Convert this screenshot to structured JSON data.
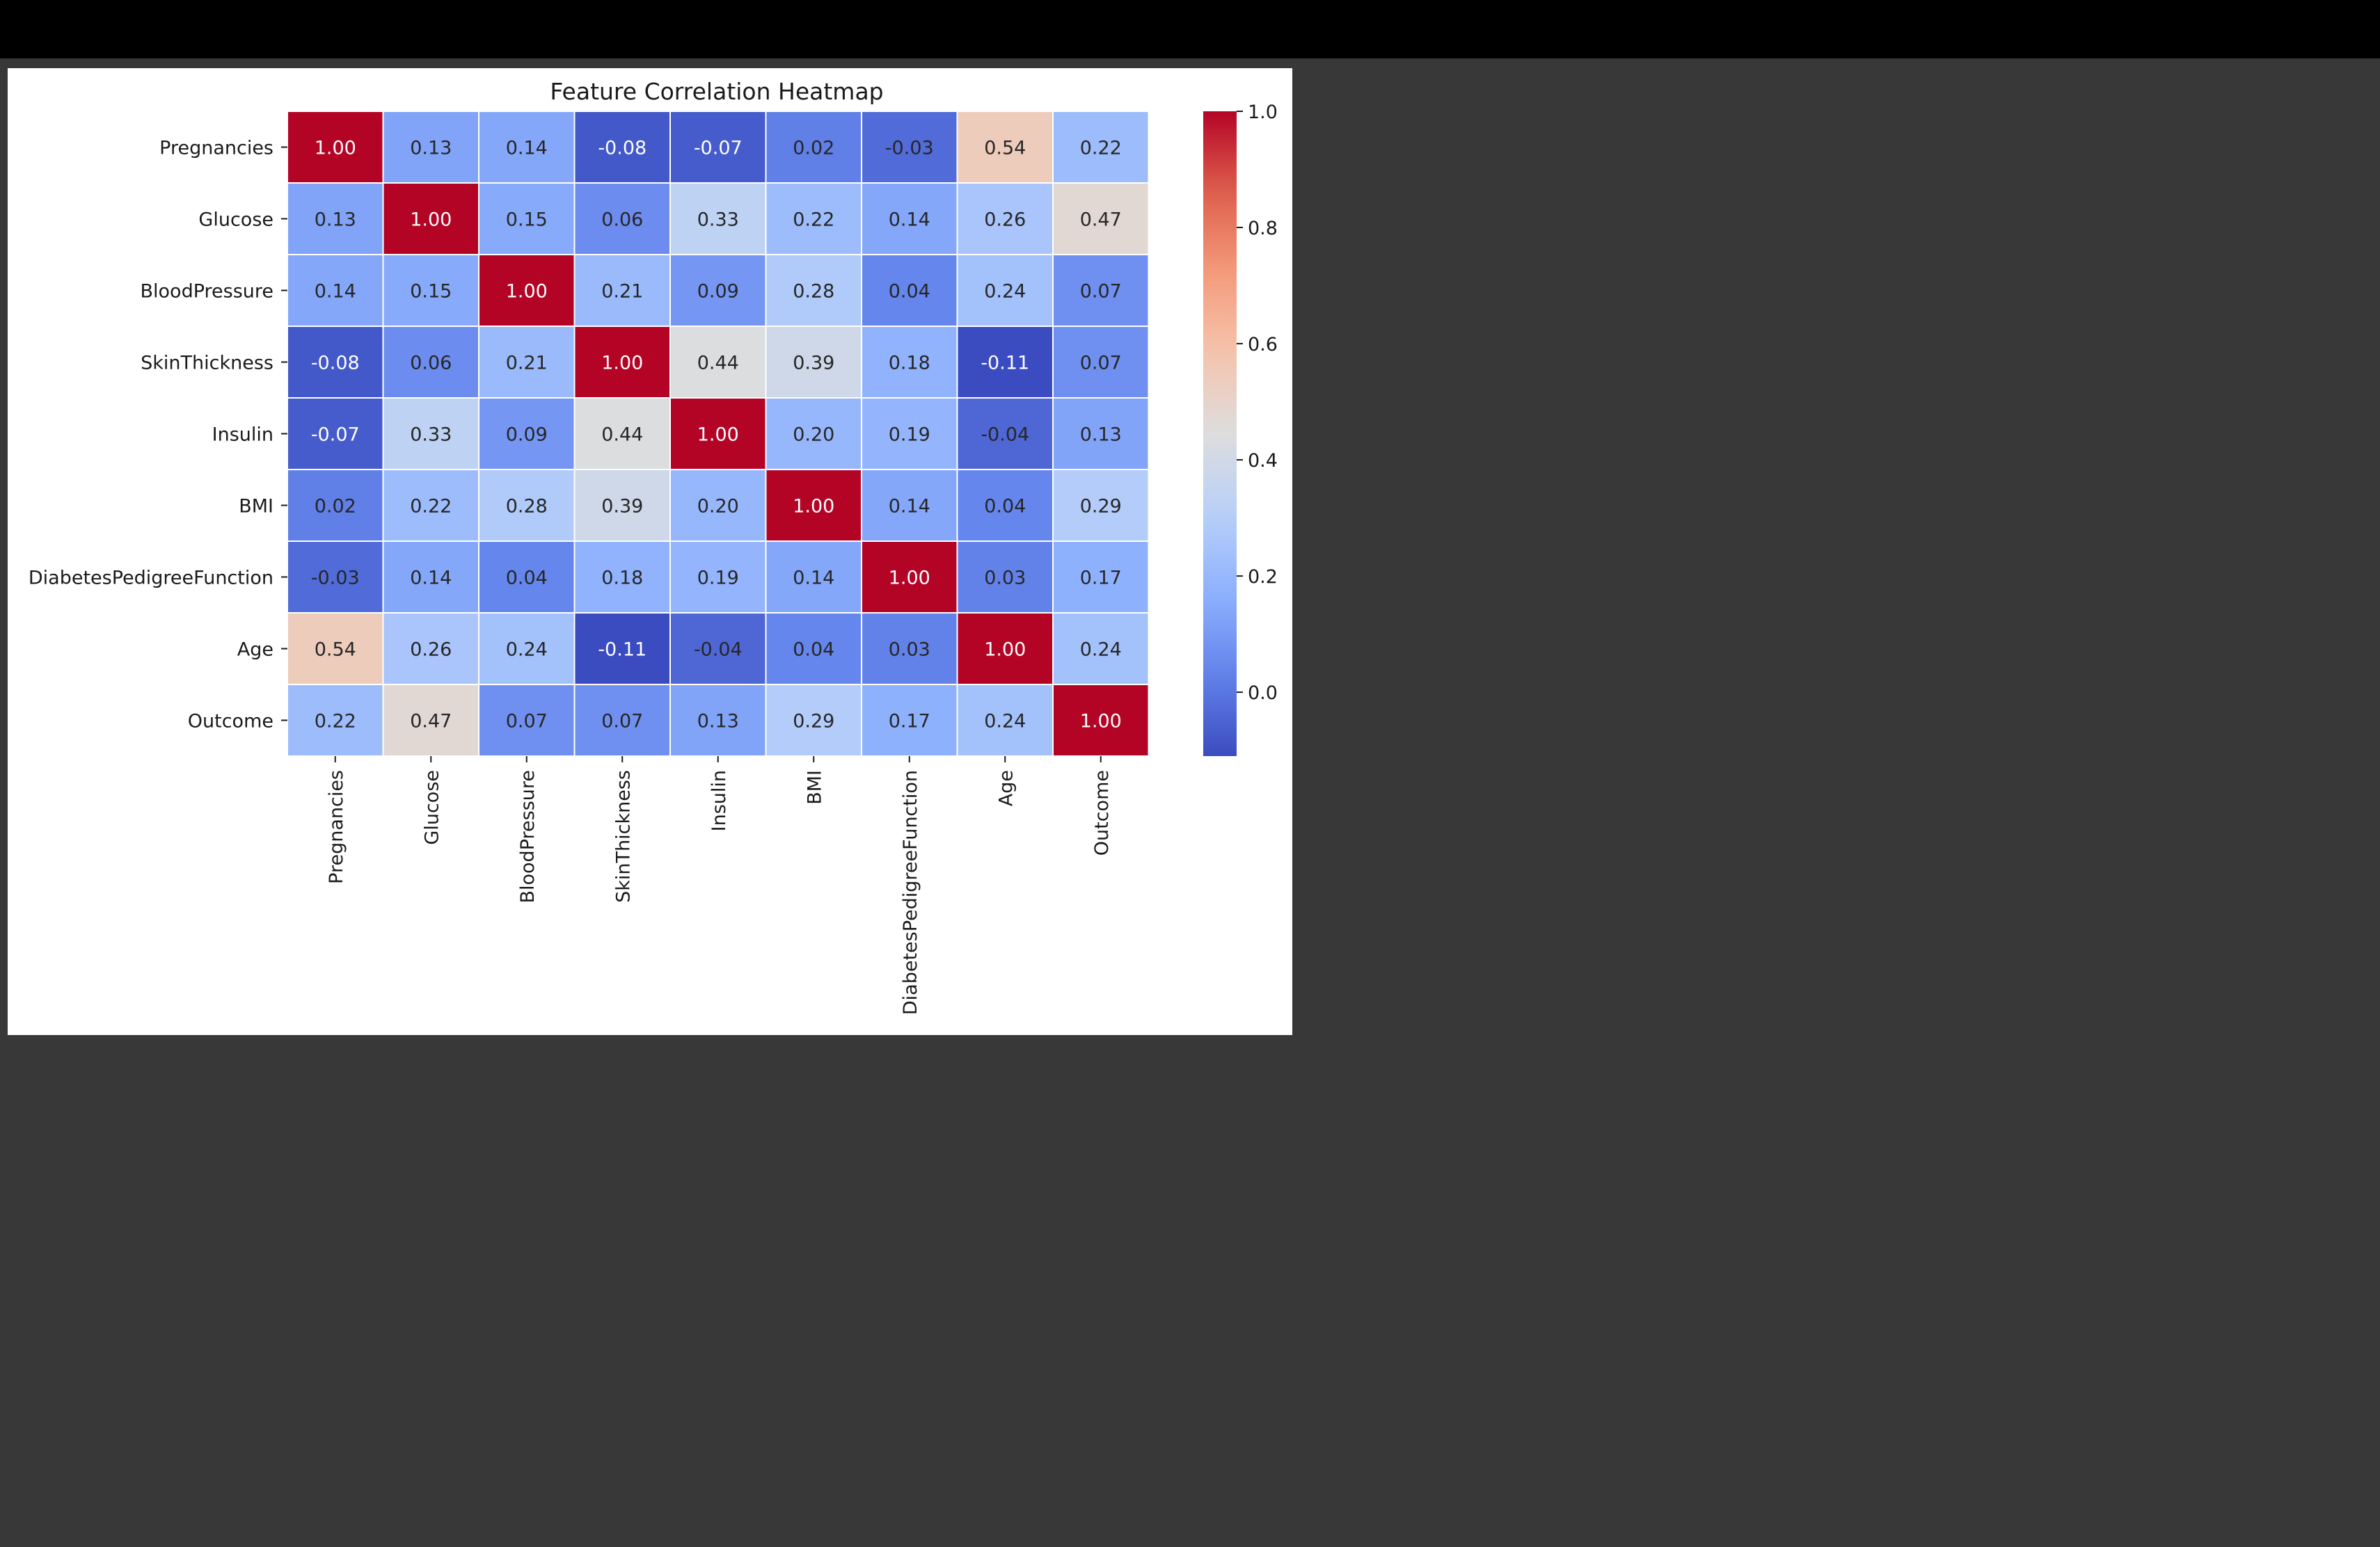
{
  "chart_data": {
    "type": "heatmap",
    "title": "Feature Correlation Heatmap",
    "labels": [
      "Pregnancies",
      "Glucose",
      "BloodPressure",
      "SkinThickness",
      "Insulin",
      "BMI",
      "DiabetesPedigreeFunction",
      "Age",
      "Outcome"
    ],
    "matrix": [
      [
        1.0,
        0.13,
        0.14,
        -0.08,
        -0.07,
        0.02,
        -0.03,
        0.54,
        0.22
      ],
      [
        0.13,
        1.0,
        0.15,
        0.06,
        0.33,
        0.22,
        0.14,
        0.26,
        0.47
      ],
      [
        0.14,
        0.15,
        1.0,
        0.21,
        0.09,
        0.28,
        0.04,
        0.24,
        0.07
      ],
      [
        -0.08,
        0.06,
        0.21,
        1.0,
        0.44,
        0.39,
        0.18,
        -0.11,
        0.07
      ],
      [
        -0.07,
        0.33,
        0.09,
        0.44,
        1.0,
        0.2,
        0.19,
        -0.04,
        0.13
      ],
      [
        0.02,
        0.22,
        0.28,
        0.39,
        0.2,
        1.0,
        0.14,
        0.04,
        0.29
      ],
      [
        -0.03,
        0.14,
        0.04,
        0.18,
        0.19,
        0.14,
        1.0,
        0.03,
        0.17
      ],
      [
        0.54,
        0.26,
        0.24,
        -0.11,
        -0.04,
        0.04,
        0.03,
        1.0,
        0.24
      ],
      [
        0.22,
        0.47,
        0.07,
        0.07,
        0.13,
        0.29,
        0.17,
        0.24,
        1.0
      ]
    ],
    "colormap": "coolwarm",
    "value_range": [
      -0.11,
      1.0
    ],
    "colorbar_ticks": [
      "0.0",
      "0.2",
      "0.4",
      "0.6",
      "0.8",
      "1.0"
    ],
    "annotation_format": "2 decimals",
    "grid": "white cell borders",
    "legend": "colorbar right"
  }
}
